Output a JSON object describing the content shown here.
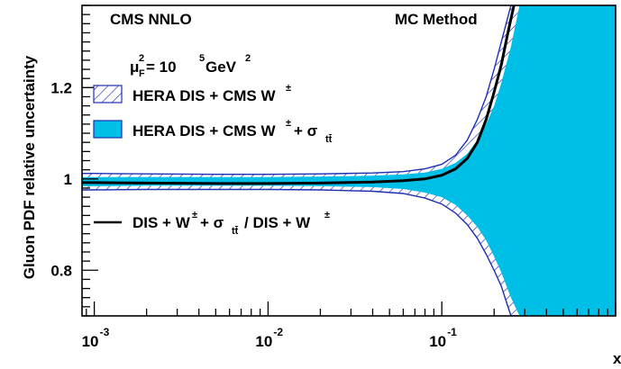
{
  "chart_data": {
    "type": "area",
    "x_scale": "log",
    "xlim": [
      0.00085,
      1.0
    ],
    "ylim": [
      0.7,
      1.38
    ],
    "xlabel": "x",
    "ylabel": "Gluon PDF relative uncertainty",
    "labels": {
      "top_left": "CMS NNLO",
      "top_right": "MC Method",
      "scale_mu": "μ",
      "scale_sup": "2",
      "scale_sub": "F",
      "scale_value": " = 10",
      "scale_exp": "5",
      "scale_unit": " GeV",
      "scale_unit_exp": "2"
    },
    "x_ticks": [
      {
        "base": "10",
        "exp": "-3",
        "value": 0.001
      },
      {
        "base": "10",
        "exp": "-2",
        "value": 0.01
      },
      {
        "base": "10",
        "exp": "-1",
        "value": 0.1
      }
    ],
    "y_ticks": [
      {
        "label": "0.8",
        "value": 0.8
      },
      {
        "label": "1",
        "value": 1.0
      },
      {
        "label": "1.2",
        "value": 1.2
      }
    ],
    "legend": {
      "placement": "left",
      "entries": [
        {
          "text": "HERA DIS + CMS W",
          "sup": "±",
          "tail": "",
          "style": "hatched"
        },
        {
          "text": "HERA DIS + CMS W",
          "sup": "±",
          "tail": " + σ",
          "tail_sub": "tt̄",
          "style": "filled"
        },
        {
          "text": "DIS + W",
          "sup": "±",
          "tail": " + σ",
          "tail_sub": "tt̄",
          "tail2": " / DIS + W",
          "sup2": "±",
          "style": "line"
        }
      ]
    },
    "colors": {
      "fill": "#00bfe6",
      "hatch": "#1f2fb0",
      "line": "#000000"
    },
    "series": [
      {
        "name": "HERA DIS + CMS W± (hatched band)",
        "x": [
          0.00085,
          0.001,
          0.002,
          0.005,
          0.01,
          0.02,
          0.04,
          0.06,
          0.08,
          0.1,
          0.12,
          0.14,
          0.16,
          0.18,
          0.2,
          0.22,
          0.25,
          0.28,
          0.3,
          0.33,
          0.35,
          0.4,
          0.5,
          0.7,
          1.0
        ],
        "upper": [
          1.012,
          1.012,
          1.011,
          1.01,
          1.01,
          1.011,
          1.013,
          1.016,
          1.022,
          1.032,
          1.052,
          1.085,
          1.13,
          1.18,
          1.24,
          1.3,
          1.38,
          1.38,
          1.38,
          1.38,
          1.38,
          1.38,
          1.38,
          1.38,
          1.38
        ],
        "lower": [
          0.976,
          0.976,
          0.977,
          0.977,
          0.977,
          0.976,
          0.973,
          0.968,
          0.958,
          0.945,
          0.925,
          0.9,
          0.87,
          0.835,
          0.8,
          0.765,
          0.7,
          0.7,
          0.7,
          0.7,
          0.7,
          0.7,
          0.7,
          0.7,
          0.7
        ]
      },
      {
        "name": "HERA DIS + CMS W± + σtt̄ (filled band)",
        "x": [
          0.00085,
          0.001,
          0.002,
          0.005,
          0.01,
          0.02,
          0.04,
          0.06,
          0.08,
          0.1,
          0.12,
          0.14,
          0.16,
          0.18,
          0.2,
          0.22,
          0.25,
          0.28,
          0.3,
          0.33,
          0.35,
          0.4,
          0.5,
          0.7,
          1.0
        ],
        "upper": [
          1.004,
          1.004,
          1.004,
          1.004,
          1.004,
          1.005,
          1.007,
          1.01,
          1.014,
          1.022,
          1.035,
          1.055,
          1.085,
          1.12,
          1.16,
          1.21,
          1.29,
          1.38,
          1.38,
          1.38,
          1.38,
          1.38,
          1.38,
          1.38,
          1.38
        ],
        "lower": [
          0.984,
          0.984,
          0.985,
          0.985,
          0.985,
          0.984,
          0.982,
          0.978,
          0.97,
          0.96,
          0.943,
          0.92,
          0.895,
          0.865,
          0.83,
          0.795,
          0.74,
          0.7,
          0.7,
          0.7,
          0.7,
          0.7,
          0.7,
          0.7,
          0.7
        ]
      },
      {
        "name": "DIS + W± + σtt̄ / DIS + W± (ratio)",
        "x": [
          0.00085,
          0.001,
          0.002,
          0.005,
          0.01,
          0.02,
          0.04,
          0.06,
          0.08,
          0.1,
          0.12,
          0.14,
          0.16,
          0.18,
          0.2,
          0.22,
          0.24,
          0.26
        ],
        "values": [
          0.992,
          0.992,
          0.991,
          0.99,
          0.99,
          0.991,
          0.993,
          0.996,
          1.0,
          1.008,
          1.022,
          1.045,
          1.08,
          1.13,
          1.19,
          1.25,
          1.32,
          1.38
        ]
      }
    ]
  }
}
